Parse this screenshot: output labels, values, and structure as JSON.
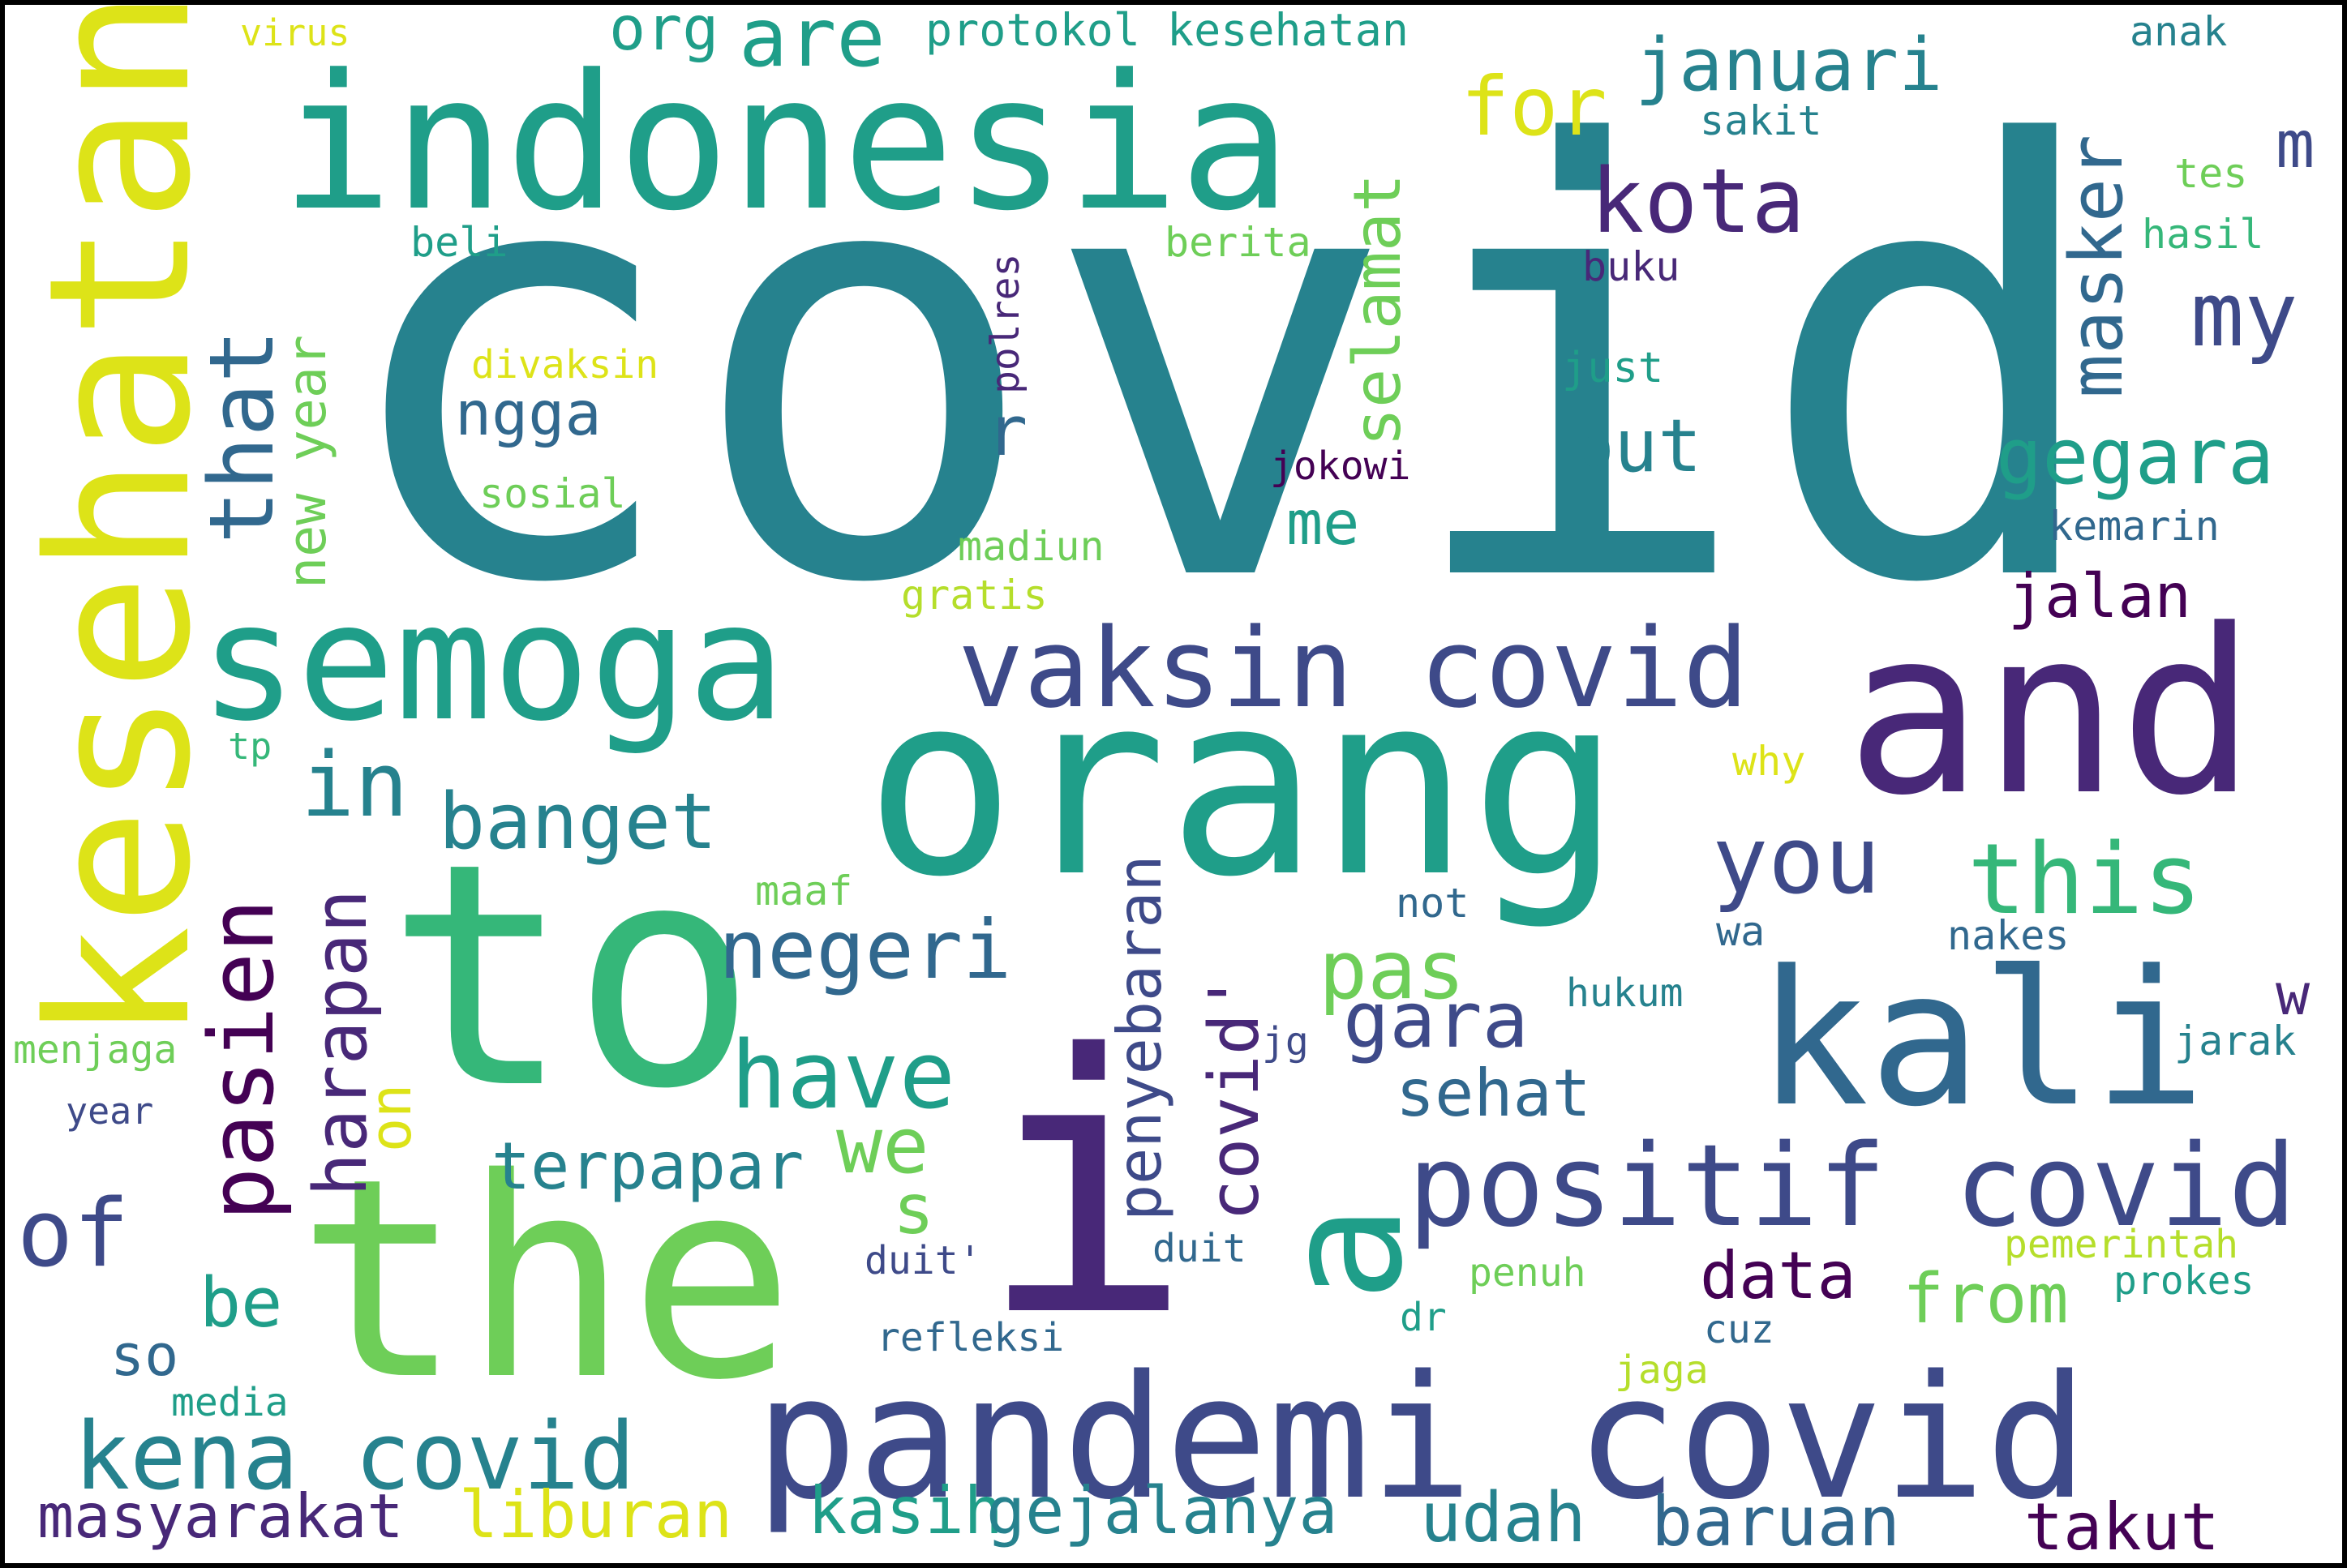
{
  "palette": {
    "v1": "#440154",
    "v2": "#482878",
    "v3": "#3e4a89",
    "v4": "#31688e",
    "v5": "#26828e",
    "v6": "#1f9e89",
    "v7": "#35b779",
    "v8": "#6ece58",
    "v9": "#b5de2b",
    "v10": "#dde318"
  },
  "words": [
    {
      "text": "covid",
      "color": "v5"
    },
    {
      "text": "indonesia",
      "color": "v6"
    },
    {
      "text": "kesehatan",
      "color": "v10"
    },
    {
      "text": "and",
      "color": "v2"
    },
    {
      "text": "orang",
      "color": "v6"
    },
    {
      "text": "semoga",
      "color": "v6"
    },
    {
      "text": "to",
      "color": "v7"
    },
    {
      "text": "the",
      "color": "v8"
    },
    {
      "text": "i",
      "color": "v2"
    },
    {
      "text": "kali",
      "color": "v4"
    },
    {
      "text": "pandemi covid",
      "color": "v3"
    },
    {
      "text": "vaksin covid",
      "color": "v3"
    },
    {
      "text": "positif covid",
      "color": "v3"
    },
    {
      "text": "a",
      "color": "v6"
    },
    {
      "text": "kena covid",
      "color": "v5"
    },
    {
      "text": "this",
      "color": "v7"
    },
    {
      "text": "you",
      "color": "v3"
    },
    {
      "text": "gegara",
      "color": "v6"
    },
    {
      "text": "my",
      "color": "v3"
    },
    {
      "text": "masker",
      "color": "v4"
    },
    {
      "text": "januari",
      "color": "v5"
    },
    {
      "text": "for",
      "color": "v10"
    },
    {
      "text": "are",
      "color": "v6"
    },
    {
      "text": "org",
      "color": "v6"
    },
    {
      "text": "kota",
      "color": "v2"
    },
    {
      "text": "selamat",
      "color": "v8"
    },
    {
      "text": "but",
      "color": "v5"
    },
    {
      "text": "that",
      "color": "v4"
    },
    {
      "text": "new year",
      "color": "v8"
    },
    {
      "text": "ngga",
      "color": "v4"
    },
    {
      "text": "r",
      "color": "v4"
    },
    {
      "text": "me",
      "color": "v6"
    },
    {
      "text": "jalan",
      "color": "v1"
    },
    {
      "text": "in",
      "color": "v5"
    },
    {
      "text": "banget",
      "color": "v5"
    },
    {
      "text": "pasien",
      "color": "v1"
    },
    {
      "text": "harapan",
      "color": "v2"
    },
    {
      "text": "negeri",
      "color": "v4"
    },
    {
      "text": "have",
      "color": "v6"
    },
    {
      "text": "pas",
      "color": "v8"
    },
    {
      "text": "gara",
      "color": "v3"
    },
    {
      "text": "penyebaran",
      "color": "v3"
    },
    {
      "text": "covid'",
      "color": "v2"
    },
    {
      "text": "on",
      "color": "v10"
    },
    {
      "text": "we",
      "color": "v8"
    },
    {
      "text": "s",
      "color": "v8"
    },
    {
      "text": "sehat",
      "color": "v4"
    },
    {
      "text": "terpapar",
      "color": "v5"
    },
    {
      "text": "of",
      "color": "v3"
    },
    {
      "text": "be",
      "color": "v6"
    },
    {
      "text": "so",
      "color": "v4"
    },
    {
      "text": "data",
      "color": "v1"
    },
    {
      "text": "from",
      "color": "v8"
    },
    {
      "text": "masyarakat",
      "color": "v2"
    },
    {
      "text": "liburan",
      "color": "v10"
    },
    {
      "text": "kasih",
      "color": "v6"
    },
    {
      "text": "gejalanya",
      "color": "v5"
    },
    {
      "text": "udah",
      "color": "v5"
    },
    {
      "text": "baruan",
      "color": "v4"
    },
    {
      "text": "takut",
      "color": "v1"
    },
    {
      "text": "m",
      "color": "v3"
    },
    {
      "text": "w",
      "color": "v2"
    },
    {
      "text": "virus",
      "color": "v10"
    },
    {
      "text": "protokol kesehatan",
      "color": "v6"
    },
    {
      "text": "anak",
      "color": "v5"
    },
    {
      "text": "sakit",
      "color": "v5"
    },
    {
      "text": "tes",
      "color": "v8"
    },
    {
      "text": "hasil",
      "color": "v7"
    },
    {
      "text": "beli",
      "color": "v6"
    },
    {
      "text": "berita",
      "color": "v8"
    },
    {
      "text": "buku",
      "color": "v2"
    },
    {
      "text": "polres",
      "color": "v2"
    },
    {
      "text": "divaksin",
      "color": "v10"
    },
    {
      "text": "just",
      "color": "v6"
    },
    {
      "text": "jokowi",
      "color": "v1"
    },
    {
      "text": "sosial",
      "color": "v8"
    },
    {
      "text": "kemarin",
      "color": "v4"
    },
    {
      "text": "madiun",
      "color": "v8"
    },
    {
      "text": "gratis",
      "color": "v9"
    },
    {
      "text": "tp",
      "color": "v7"
    },
    {
      "text": "why",
      "color": "v10"
    },
    {
      "text": "maaf",
      "color": "v8"
    },
    {
      "text": "not",
      "color": "v4"
    },
    {
      "text": "wa",
      "color": "v4"
    },
    {
      "text": "nakes",
      "color": "v4"
    },
    {
      "text": "hukum",
      "color": "v5"
    },
    {
      "text": "jarak",
      "color": "v5"
    },
    {
      "text": "jg",
      "color": "v3"
    },
    {
      "text": "menjaga",
      "color": "v8"
    },
    {
      "text": "year",
      "color": "v3"
    },
    {
      "text": "duit'",
      "color": "v3"
    },
    {
      "text": "duit",
      "color": "v4"
    },
    {
      "text": "pemerintah",
      "color": "v9"
    },
    {
      "text": "penuh",
      "color": "v8"
    },
    {
      "text": "prokes",
      "color": "v6"
    },
    {
      "text": "dr",
      "color": "v6"
    },
    {
      "text": "refleksi",
      "color": "v4"
    },
    {
      "text": "cuz",
      "color": "v4"
    },
    {
      "text": "jaga",
      "color": "v9"
    },
    {
      "text": "media",
      "color": "v6"
    }
  ]
}
